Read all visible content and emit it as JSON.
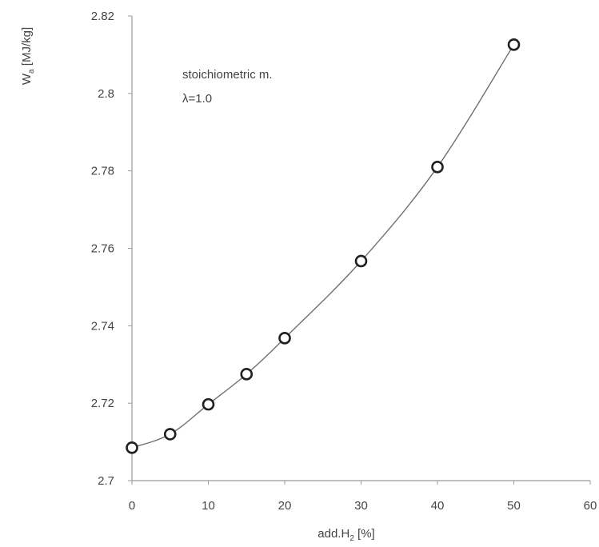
{
  "chart_data": {
    "type": "scatter",
    "title": "",
    "xlabel_main": "add.H",
    "xlabel_sub": "2",
    "xlabel_unit": " [%]",
    "ylabel_main": "W",
    "ylabel_sub": "a",
    "ylabel_unit": " [MJ/kg]",
    "xlim": [
      0,
      60
    ],
    "ylim": [
      2.7,
      2.82
    ],
    "x_ticks": [
      0,
      10,
      20,
      30,
      40,
      50,
      60
    ],
    "y_ticks": [
      2.7,
      2.72,
      2.74,
      2.76,
      2.78,
      2.8,
      2.82
    ],
    "x_tick_labels": [
      "0",
      "10",
      "20",
      "30",
      "40",
      "50",
      "60"
    ],
    "y_tick_labels": [
      "2.7",
      "2.72",
      "2.74",
      "2.76",
      "2.78",
      "2.8",
      "2.82"
    ],
    "series": [
      {
        "marker": "circle",
        "fit_line": true,
        "x": [
          0,
          5,
          10,
          15,
          20,
          30,
          40,
          50
        ],
        "y": [
          2.7085,
          2.712,
          2.7197,
          2.7275,
          2.7368,
          2.7567,
          2.781,
          2.8126
        ]
      }
    ],
    "annotation_lines": [
      "stoichiometric m.",
      "λ=1.0"
    ],
    "grid": false,
    "colors": {
      "axis": "#9a9a9a",
      "curve": "#707070",
      "marker": "#202020",
      "text": "#444444"
    }
  }
}
